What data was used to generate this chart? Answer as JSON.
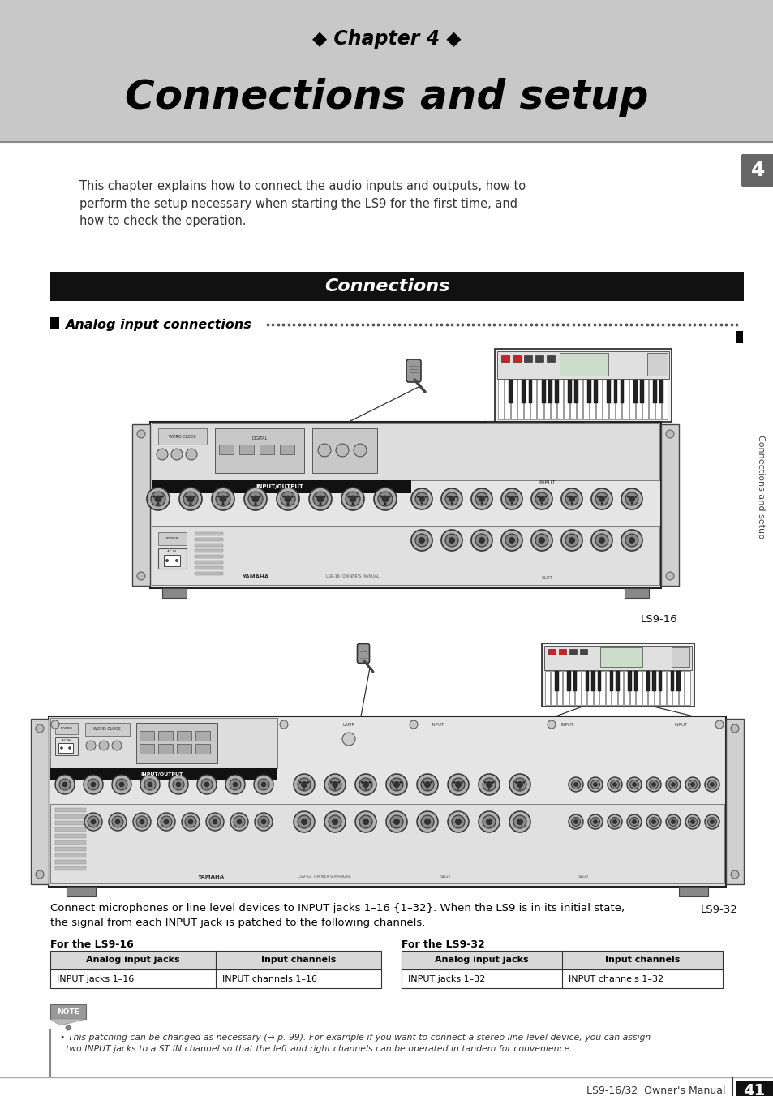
{
  "page_bg": "#ffffff",
  "header_bg": "#c8c8c8",
  "chapter_label": "◆ Chapter 4 ◆",
  "title": "Connections and setup",
  "body_text": "This chapter explains how to connect the audio inputs and outputs, how to\nperform the setup necessary when starting the LS9 for the first time, and\nhow to check the operation.",
  "connections_bar_bg": "#111111",
  "connections_bar_text": "Connections",
  "connections_bar_text_color": "#ffffff",
  "section_heading": "Analog input connections",
  "sidebar_text": "Connections and setup",
  "sidebar_number": "4",
  "ls9_16_label": "LS9-16",
  "ls9_32_label": "LS9-32",
  "body_paragraph": "Connect microphones or line level devices to INPUT jacks 1–16 {1–32}. When the LS9 is in its initial state,\nthe signal from each INPUT jack is patched to the following channels.",
  "table_ls9_16_title": "For the LS9-16",
  "table_ls9_32_title": "For the LS9-32",
  "table_headers": [
    "Analog input jacks",
    "Input channels"
  ],
  "table_ls9_16_row": [
    "INPUT jacks 1–16",
    "INPUT channels 1–16"
  ],
  "table_ls9_32_row": [
    "INPUT jacks 1–32",
    "INPUT channels 1–32"
  ],
  "note_text": "• This patching can be changed as necessary (→ p. 99). For example if you want to connect a stereo line-level device, you can assign\n  two INPUT jacks to a ST IN channel so that the left and right channels can be operated in tandem for convenience.",
  "footer_text": "LS9-16/32  Owner's Manual",
  "page_number": "41"
}
